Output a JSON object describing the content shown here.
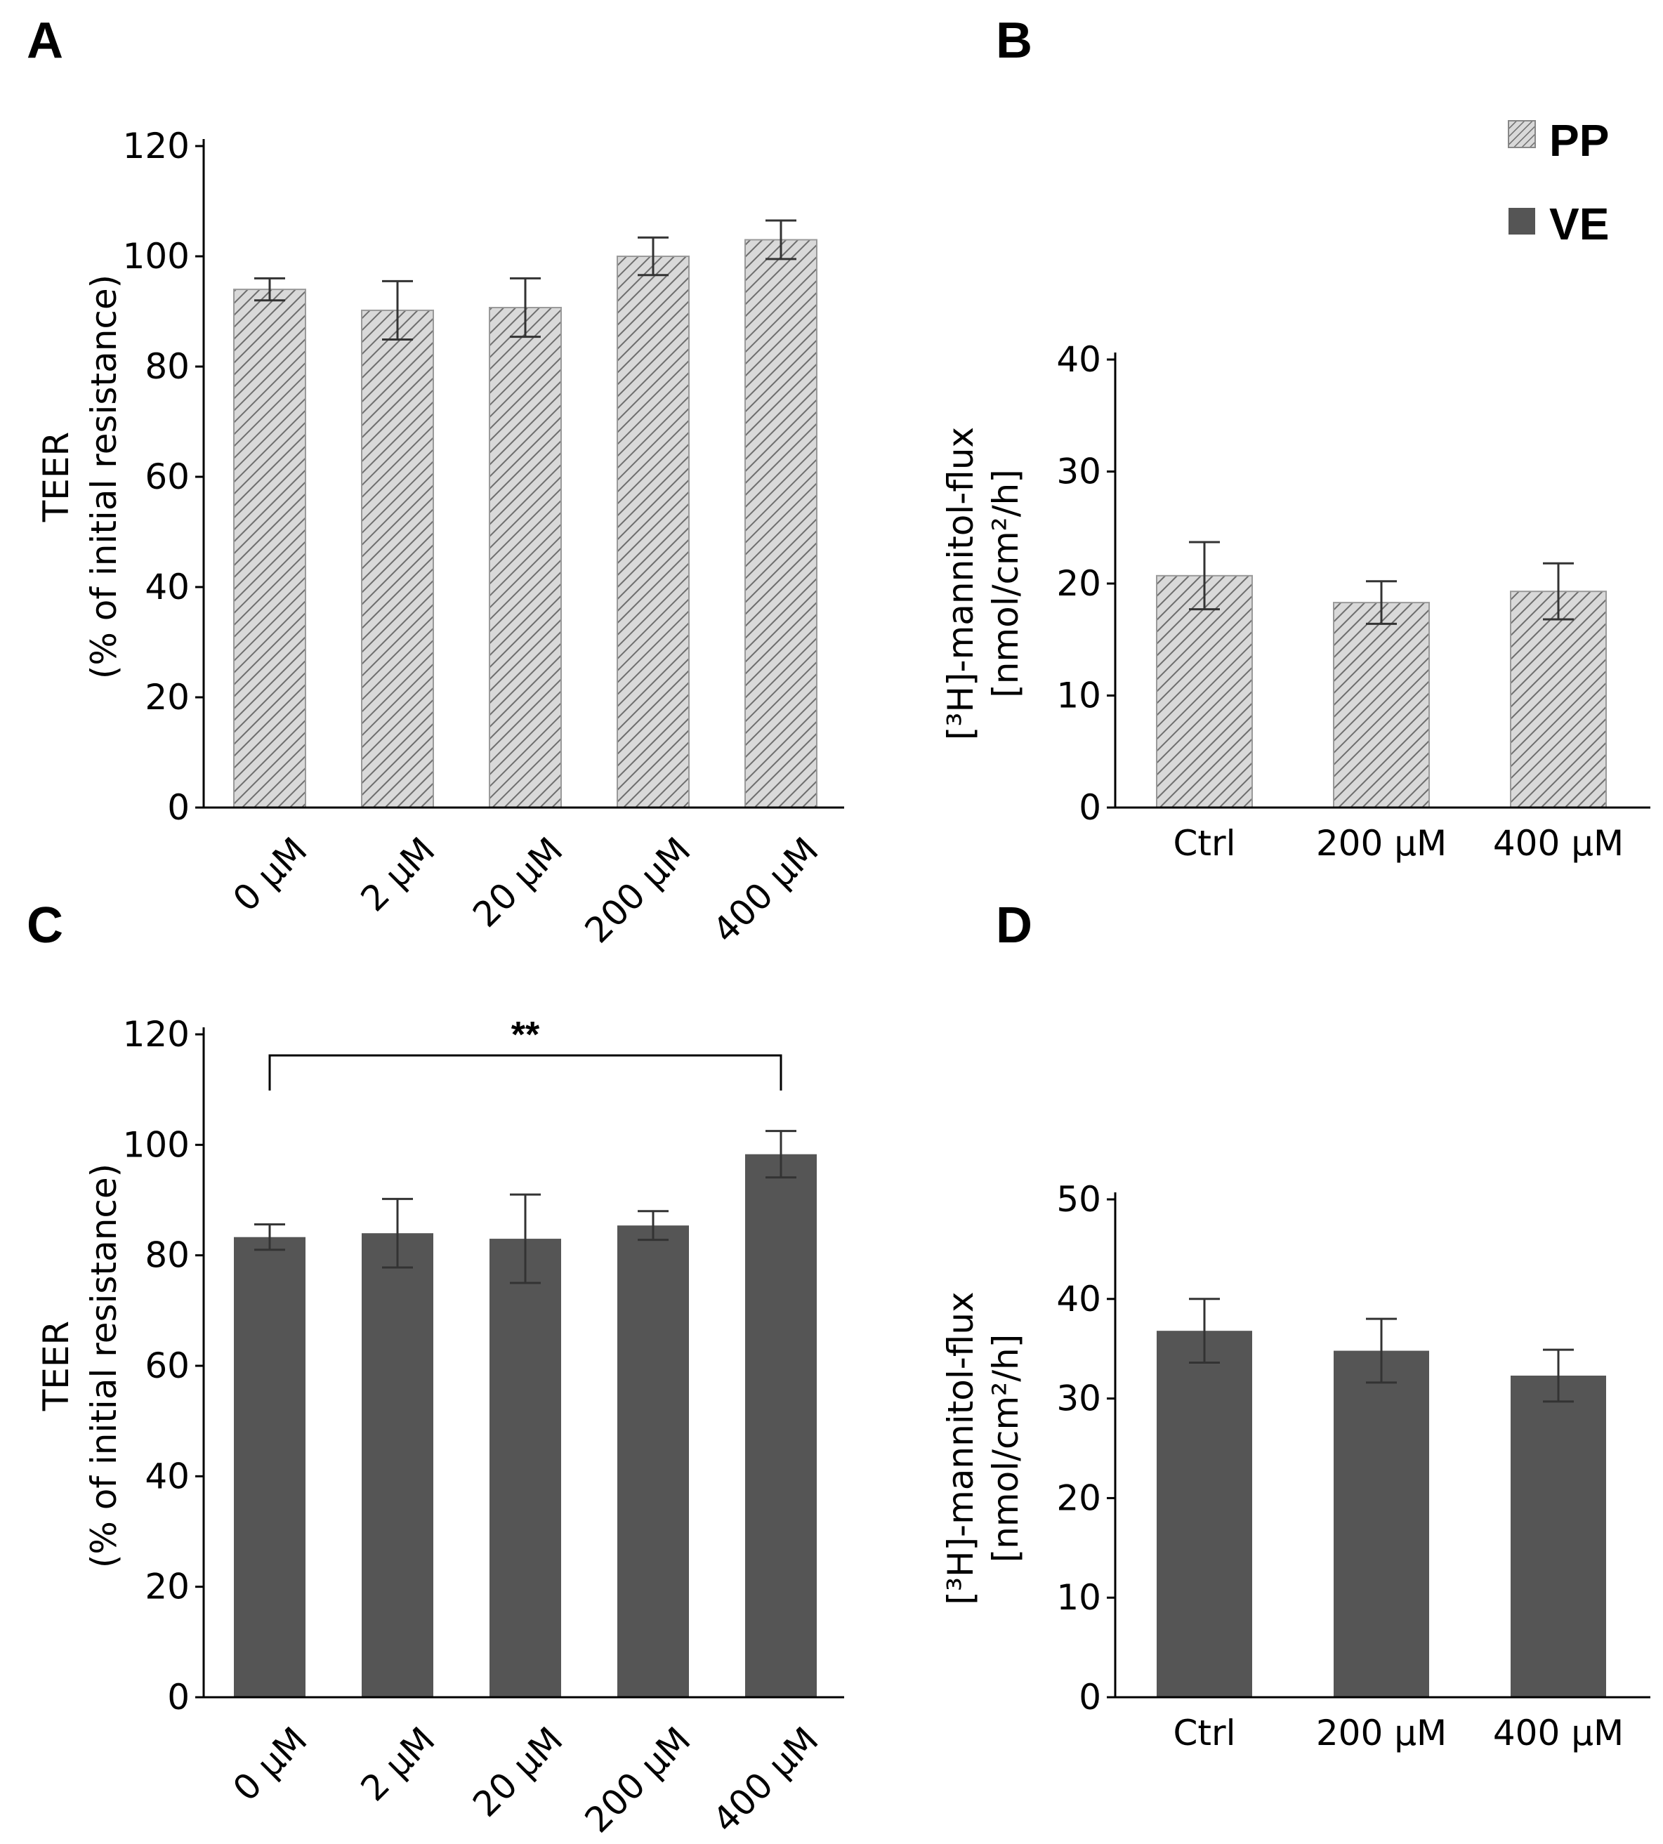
{
  "legend": {
    "position": "top-right",
    "items": [
      {
        "label": "PP",
        "fill": "hatch",
        "color": "#d9d9d9"
      },
      {
        "label": "VE",
        "fill": "solid",
        "color": "#555555"
      }
    ]
  },
  "colors": {
    "pp_fill": "#d9d9d9",
    "pp_hatch": "#6e6e6e",
    "ve_fill": "#555555",
    "error_bar": "#333333",
    "axis": "#000000"
  },
  "chart_data": [
    {
      "panel": "A",
      "type": "bar",
      "fill": "hatch",
      "categories": [
        "0 µM",
        "2 µM",
        "20 µM",
        "200 µM",
        "400 µM"
      ],
      "values": [
        94,
        90.2,
        90.7,
        100,
        103
      ],
      "errors": [
        2,
        5.3,
        5.3,
        3.4,
        3.5
      ],
      "ylabel_lines": [
        "TEER",
        "(% of initial resistance)"
      ],
      "ylim": [
        0,
        120
      ],
      "yticks": [
        "0",
        "20",
        "40",
        "60",
        "80",
        "100",
        "120"
      ],
      "xtick_rotation": -45,
      "grid": false
    },
    {
      "panel": "B",
      "type": "bar",
      "fill": "hatch",
      "categories": [
        "Ctrl",
        "200 µM",
        "400 µM"
      ],
      "values": [
        20.7,
        18.3,
        19.3
      ],
      "errors": [
        3,
        1.9,
        2.5
      ],
      "ylabel_lines": [
        "[³H]-mannitol-flux",
        "[nmol/cm²/h]"
      ],
      "ylim": [
        0,
        40
      ],
      "yticks": [
        "0",
        "10",
        "20",
        "30",
        "40"
      ],
      "grid": false
    },
    {
      "panel": "C",
      "type": "bar",
      "fill": "solid",
      "categories": [
        "0 µM",
        "2 µM",
        "20 µM",
        "200 µM",
        "400 µM"
      ],
      "values": [
        83.3,
        84,
        83,
        85.4,
        98.3
      ],
      "errors": [
        2.3,
        6.2,
        8,
        2.6,
        4.2
      ],
      "ylabel_lines": [
        "TEER",
        "(% of initial resistance)"
      ],
      "ylim": [
        0,
        120
      ],
      "yticks": [
        "0",
        "20",
        "40",
        "60",
        "80",
        "100",
        "120"
      ],
      "xtick_rotation": -45,
      "significance": {
        "label": "**",
        "from": "0 µM",
        "to": "400 µM"
      },
      "grid": false
    },
    {
      "panel": "D",
      "type": "bar",
      "fill": "solid",
      "categories": [
        "Ctrl",
        "200 µM",
        "400 µM"
      ],
      "values": [
        36.8,
        34.8,
        32.3
      ],
      "errors": [
        3.2,
        3.2,
        2.6
      ],
      "ylabel_lines": [
        "[³H]-mannitol-flux",
        "[nmol/cm²/h]"
      ],
      "ylim": [
        0,
        50
      ],
      "yticks": [
        "0",
        "10",
        "20",
        "30",
        "40",
        "50"
      ],
      "grid": false
    }
  ]
}
